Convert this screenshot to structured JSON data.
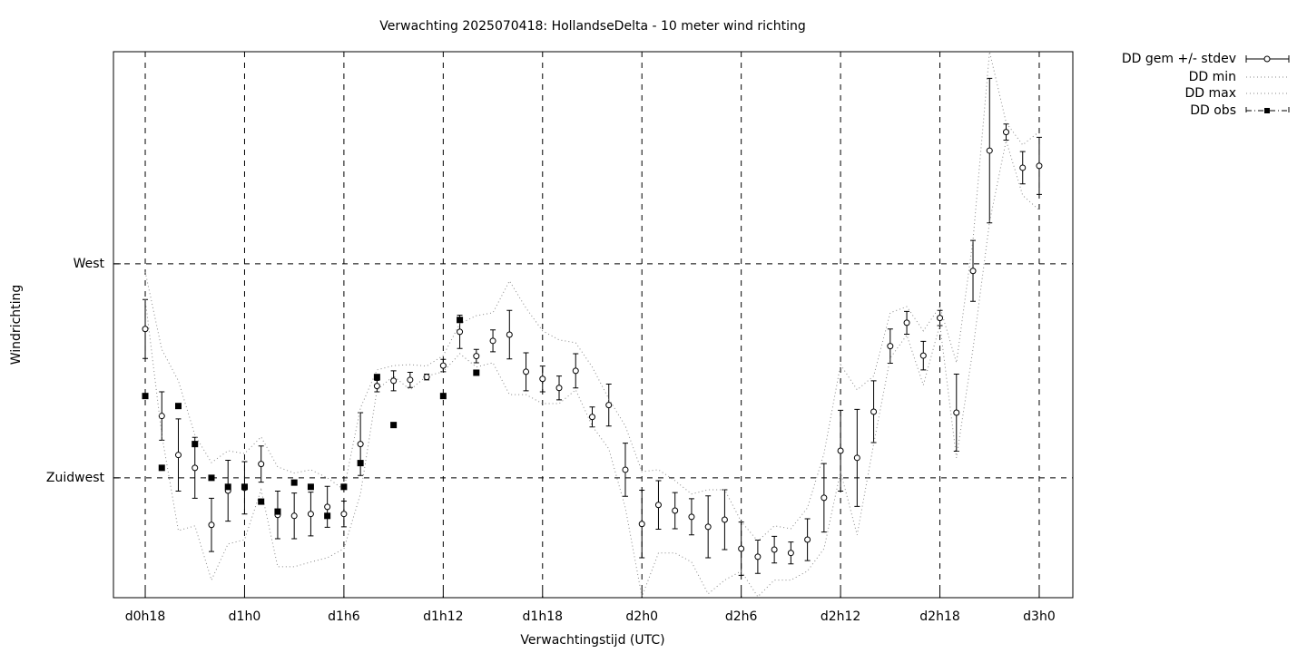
{
  "chart_data": {
    "type": "line",
    "title": "Verwachting 2025070418: HollandseDelta - 10 meter wind richting",
    "x_label": "Verwachtingstijd (UTC)",
    "y_label": "Windrichting",
    "xlim": [
      16.08,
      74.03
    ],
    "ylim": [
      199.8,
      314.6
    ],
    "xticks": [
      {
        "value": 18,
        "label": "d0h18"
      },
      {
        "value": 24,
        "label": "d1h0"
      },
      {
        "value": 30,
        "label": "d1h6"
      },
      {
        "value": 36,
        "label": "d1h12"
      },
      {
        "value": 42,
        "label": "d1h18"
      },
      {
        "value": 48,
        "label": "d2h0"
      },
      {
        "value": 54,
        "label": "d2h6"
      },
      {
        "value": 60,
        "label": "d2h12"
      },
      {
        "value": 66,
        "label": "d2h18"
      },
      {
        "value": 72,
        "label": "d3h0"
      }
    ],
    "yticks": [
      {
        "value": 225,
        "label": "Zuidwest"
      },
      {
        "value": 270,
        "label": "West"
      }
    ],
    "grid": true,
    "legend": "outside-right",
    "x": [
      18,
      19,
      20,
      21,
      22,
      23,
      24,
      25,
      26,
      27,
      28,
      29,
      30,
      31,
      32,
      33,
      34,
      35,
      36,
      37,
      38,
      39,
      40,
      41,
      42,
      43,
      44,
      45,
      46,
      47,
      48,
      49,
      50,
      51,
      52,
      53,
      54,
      55,
      56,
      57,
      58,
      59,
      60,
      61,
      62,
      63,
      64,
      65,
      66,
      67,
      68,
      69,
      70,
      71,
      72
    ],
    "series": [
      {
        "name": "DD gem +/- stdev",
        "color": "#000000",
        "style": "errorbars",
        "values": [
          256.3,
          238.0,
          229.8,
          227.1,
          215.1,
          222.3,
          222.9,
          227.9,
          217.2,
          217.0,
          217.4,
          218.9,
          217.4,
          232.1,
          244.3,
          245.4,
          245.6,
          246.2,
          248.6,
          255.7,
          250.6,
          253.8,
          255.1,
          247.3,
          245.8,
          243.9,
          247.5,
          237.8,
          240.3,
          226.7,
          215.3,
          219.3,
          218.1,
          216.8,
          214.7,
          216.2,
          210.1,
          208.4,
          209.9,
          209.2,
          212.0,
          220.8,
          230.7,
          229.2,
          238.9,
          252.7,
          257.6,
          250.7,
          258.6,
          238.7,
          268.5,
          293.8,
          297.7,
          290.2,
          290.6
        ],
        "errors": [
          6.2,
          5.1,
          7.6,
          6.4,
          5.6,
          6.4,
          5.5,
          3.8,
          5.0,
          4.8,
          4.6,
          4.3,
          2.7,
          6.6,
          1.2,
          2.1,
          1.6,
          0.6,
          1.3,
          3.5,
          1.4,
          2.3,
          5.1,
          4.0,
          2.7,
          2.5,
          3.6,
          2.1,
          4.4,
          5.6,
          7.1,
          5.1,
          3.8,
          3.8,
          6.5,
          6.3,
          5.6,
          3.5,
          2.8,
          2.3,
          4.4,
          7.2,
          8.5,
          10.2,
          6.5,
          3.6,
          2.4,
          3.0,
          1.6,
          8.1,
          6.4,
          15.2,
          1.7,
          3.4,
          6.0
        ]
      },
      {
        "name": "DD min",
        "color": "#888888",
        "style": "dotted",
        "values": [
          262.6,
          234,
          213.9,
          214.9,
          203.5,
          211.1,
          212,
          222.5,
          206.3,
          206.3,
          207.3,
          208.2,
          210.1,
          221.6,
          243.5,
          246.4,
          243.5,
          246.4,
          247.3,
          251.1,
          248.3,
          249.2,
          242.5,
          242.5,
          240.6,
          240.6,
          243.5,
          235.9,
          231.1,
          218.7,
          200,
          209.2,
          209.2,
          207.3,
          200.6,
          203.5,
          205.4,
          200,
          203.5,
          203.5,
          205.4,
          210.1,
          226.3,
          213,
          232.1,
          250.2,
          255,
          244.5,
          257.2,
          229.2,
          252.1,
          278.8,
          295.9,
          284.4,
          281.3
        ]
      },
      {
        "name": "DD max",
        "color": "#888888",
        "style": "dotted",
        "values": [
          268.3,
          252,
          245.4,
          234,
          228.2,
          230.7,
          230.1,
          233.6,
          227.3,
          226,
          226.7,
          225,
          222.5,
          239.7,
          247.7,
          248.6,
          248.8,
          248.5,
          250.7,
          257.4,
          259.1,
          259.7,
          266.4,
          260.7,
          255.9,
          254,
          253.4,
          248.3,
          241.6,
          235.9,
          226.3,
          226.7,
          224.4,
          221.6,
          222.5,
          222.5,
          215.8,
          211.7,
          214.9,
          214.3,
          218.7,
          230.1,
          248.8,
          243.5,
          246.4,
          259.7,
          261,
          255.9,
          261,
          249.2,
          275,
          314.6,
          299.7,
          295,
          297.8
        ]
      },
      {
        "name": "DD obs",
        "color": "#000000",
        "style": "points",
        "values": [
          242.2,
          227.1,
          240.1,
          232.1,
          225,
          223.1,
          223.1,
          220.0,
          217.9,
          224.0,
          223.1,
          217.0,
          223.1,
          228.1,
          246.2,
          236.1,
          null,
          null,
          242.2,
          258.2,
          247.1,
          null,
          null,
          null,
          null,
          null,
          null,
          null,
          null,
          null,
          null,
          null,
          null,
          null,
          null,
          null,
          null,
          null,
          null,
          null,
          null,
          null,
          null,
          null,
          null,
          null,
          null,
          null,
          null,
          null,
          null,
          null,
          null,
          null,
          null
        ]
      }
    ]
  }
}
